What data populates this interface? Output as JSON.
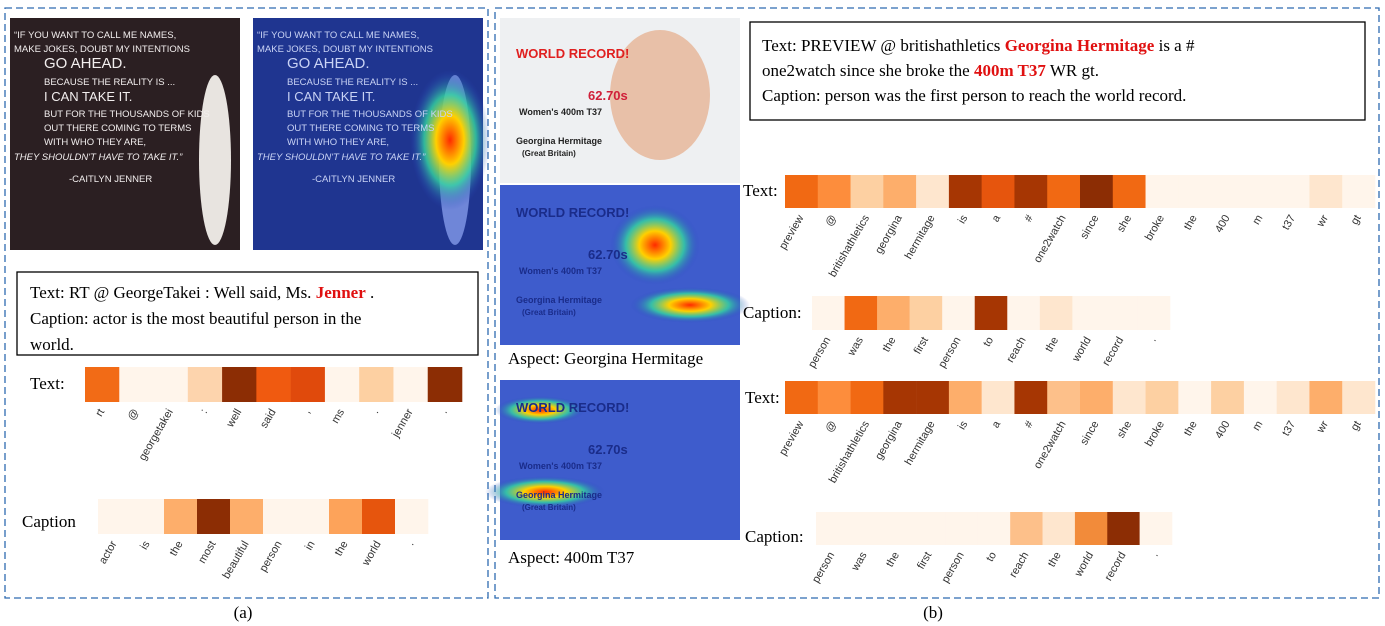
{
  "panels": {
    "a": {
      "image_lines": [
        "“IF YOU WANT TO CALL ME NAMES,",
        "MAKE JOKES, DOUBT MY INTENTIONS",
        "GO AHEAD.",
        "BECAUSE THE REALITY IS ...",
        "I CAN TAKE IT.",
        "BUT FOR THE THOUSANDS OF KIDS",
        "OUT THERE COMING TO TERMS",
        "WITH WHO THEY ARE,",
        "THEY SHOULDN'T HAVE TO TAKE IT.”",
        "-CAITLYN JENNER"
      ],
      "box_lines": [
        [
          {
            "text": "Text: RT @ GeorgeTakei : Well said, Ms. ",
            "red": false
          },
          {
            "text": "Jenner",
            "red": true
          },
          {
            "text": " .",
            "red": false
          }
        ],
        [
          {
            "text": "Caption: actor is the most beautiful person in the",
            "red": false
          }
        ],
        [
          {
            "text": "world.",
            "red": false
          }
        ]
      ],
      "heatmaps": [
        {
          "label": "Text:",
          "tokens": [
            "rt",
            "@",
            "georgetakei",
            ":",
            "well",
            "said",
            ",",
            "ms",
            ".",
            "jenner",
            "."
          ],
          "colors": [
            "#f26b16",
            "#fff5eb",
            "#fff5eb",
            "#fdd4ad",
            "#8c2d04",
            "#f05a10",
            "#e04a0c",
            "#fff5eb",
            "#fdd0a2",
            "#fff5eb",
            "#8c2d04"
          ]
        },
        {
          "label": "Caption",
          "tokens": [
            "actor",
            "is",
            "the",
            "most",
            "beautiful",
            "person",
            "in",
            "the",
            "world",
            "."
          ],
          "colors": [
            "#fff5eb",
            "#fff5eb",
            "#fdae6b",
            "#8c2d04",
            "#fdae6b",
            "#fff5eb",
            "#fff5eb",
            "#fda35a",
            "#e6550d",
            "#fff5eb"
          ]
        }
      ],
      "caption": "(a)"
    },
    "b": {
      "image_lines": [
        "WORLD RECORD!",
        "62.70s",
        "Women's 400m T37",
        "Georgina Hermitage",
        "(Great Britain)"
      ],
      "aspects": [
        "Aspect: Georgina Hermitage",
        "Aspect: 400m T37"
      ],
      "box_lines": [
        [
          {
            "text": "Text: PREVIEW @ britishathletics ",
            "red": false
          },
          {
            "text": "Georgina Hermitage",
            "red": true
          },
          {
            "text": " is a #",
            "red": false
          }
        ],
        [
          {
            "text": "one2watch since she broke the ",
            "red": false
          },
          {
            "text": "400m T37",
            "red": true
          },
          {
            "text": " WR gt.",
            "red": false
          }
        ],
        [
          {
            "text": "Caption: person was the first person to reach the world record.",
            "red": false
          }
        ]
      ],
      "heatmaps": [
        {
          "label": "Text:",
          "tokens": [
            "preview",
            "@",
            "britishathletics",
            "georgina",
            "hermitage",
            "is",
            "a",
            "#",
            "one2watch",
            "since",
            "she",
            "broke",
            "the",
            "400",
            "m",
            "t37",
            "wr",
            "gt"
          ],
          "colors": [
            "#f16913",
            "#fd8d3c",
            "#fdd0a2",
            "#fdae6b",
            "#fee6ce",
            "#a63603",
            "#e6550d",
            "#a63603",
            "#f16913",
            "#8c2d04",
            "#f16913",
            "#fff5eb",
            "#fff5eb",
            "#fff5eb",
            "#fff5eb",
            "#fff5eb",
            "#fee6ce",
            "#fff5eb"
          ]
        },
        {
          "label": "Caption:",
          "tokens": [
            "person",
            "was",
            "the",
            "first",
            "person",
            "to",
            "reach",
            "the",
            "world",
            "record",
            "."
          ],
          "colors": [
            "#fff5eb",
            "#f16913",
            "#fdae6b",
            "#fdd0a2",
            "#fff5eb",
            "#a63603",
            "#fff5eb",
            "#fee6ce",
            "#fff5eb",
            "#fff5eb",
            "#fff5eb"
          ]
        },
        {
          "label": "Text:",
          "tokens": [
            "preview",
            "@",
            "britishathletics",
            "georgina",
            "hermitage",
            "is",
            "a",
            "#",
            "one2watch",
            "since",
            "she",
            "broke",
            "the",
            "400",
            "m",
            "t37",
            "wr",
            "gt"
          ],
          "colors": [
            "#f16913",
            "#fd8d3c",
            "#f16913",
            "#a63603",
            "#a63603",
            "#fdae6b",
            "#fee6ce",
            "#a63603",
            "#fdc08a",
            "#fdae6b",
            "#fee6ce",
            "#fdd0a2",
            "#fff5eb",
            "#fdd0a2",
            "#fff5eb",
            "#fee6ce",
            "#fdae6b",
            "#fee6ce"
          ]
        },
        {
          "label": "Caption:",
          "tokens": [
            "person",
            "was",
            "the",
            "first",
            "person",
            "to",
            "reach",
            "the",
            "world",
            "record",
            "."
          ],
          "colors": [
            "#fff5eb",
            "#fff5eb",
            "#fff5eb",
            "#fff5eb",
            "#fff5eb",
            "#fff5eb",
            "#fdc08a",
            "#fee6ce",
            "#f28b3a",
            "#8c2d04",
            "#fff5eb"
          ]
        }
      ],
      "caption": "(b)"
    }
  }
}
